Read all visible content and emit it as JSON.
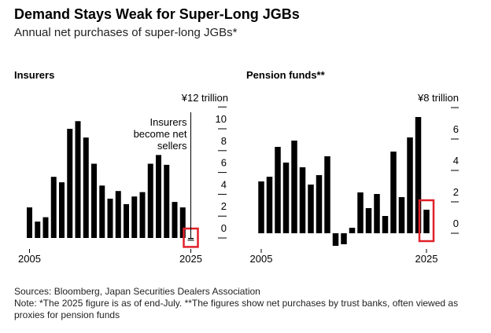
{
  "title": "Demand Stays Weak for Super-Long JGBs",
  "subtitle": "Annual net purchases of super-long JGBs*",
  "sources": "Sources: Bloomberg, Japan Securities Dealers Association",
  "note": "Note: *The 2025 figure is as of end-July. **The figures show net purchases by trust banks, often viewed as proxies for pension funds",
  "highlight_color": "#e0202a",
  "chart_data": [
    {
      "type": "bar",
      "title": "Insurers",
      "unit_label": "¥12 trillion",
      "x": [
        2005,
        2006,
        2007,
        2008,
        2009,
        2010,
        2011,
        2012,
        2013,
        2014,
        2015,
        2016,
        2017,
        2018,
        2019,
        2020,
        2021,
        2022,
        2023,
        2024,
        2025
      ],
      "values": [
        2.8,
        1.5,
        1.9,
        5.6,
        5.1,
        10.0,
        10.7,
        9.2,
        6.8,
        4.8,
        3.6,
        4.3,
        3.1,
        3.8,
        4.2,
        6.8,
        7.6,
        6.7,
        3.3,
        2.8,
        -0.1
      ],
      "x_tick_labels": [
        "2005",
        "2025"
      ],
      "y_ticks": [
        0,
        2,
        4,
        6,
        8,
        10,
        12
      ],
      "y_tick_labels": [
        "0",
        "2",
        "4",
        "6",
        "8",
        "10"
      ],
      "ylim": [
        0,
        12
      ],
      "annotation": {
        "text_lines": [
          "Insurers",
          "become net",
          "sellers"
        ],
        "year": 2025
      },
      "highlighted_year": 2025
    },
    {
      "type": "bar",
      "title": "Pension funds**",
      "unit_label": "¥8 trillion",
      "x": [
        2005,
        2006,
        2007,
        2008,
        2009,
        2010,
        2011,
        2012,
        2013,
        2014,
        2015,
        2016,
        2017,
        2018,
        2019,
        2020,
        2021,
        2022,
        2023,
        2024,
        2025
      ],
      "values": [
        3.3,
        3.6,
        5.5,
        4.5,
        5.9,
        4.2,
        3.1,
        3.7,
        4.9,
        -0.8,
        -0.7,
        0.35,
        2.6,
        1.6,
        2.5,
        1.1,
        5.2,
        2.3,
        6.1,
        7.4,
        1.5
      ],
      "x_tick_labels": [
        "2005",
        "2025"
      ],
      "y_ticks": [
        0,
        2,
        4,
        6,
        8
      ],
      "y_tick_labels": [
        "0",
        "2",
        "4",
        "6"
      ],
      "ylim": [
        -1,
        8
      ],
      "highlighted_year": 2025
    }
  ]
}
